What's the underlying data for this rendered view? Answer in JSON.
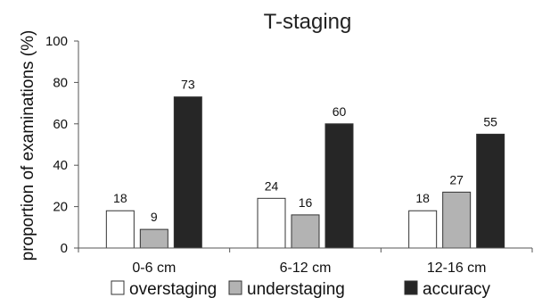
{
  "chart_data": {
    "type": "bar",
    "title": "T-staging",
    "xlabel": "",
    "ylabel": "proportion of examinations (%)",
    "ylim": [
      0,
      100
    ],
    "yticks": [
      0,
      20,
      40,
      60,
      80,
      100
    ],
    "categories": [
      "0-6 cm",
      "6-12 cm",
      "12-16 cm"
    ],
    "series": [
      {
        "name": "overstaging",
        "values": [
          18,
          24,
          18
        ],
        "color": "#ffffff"
      },
      {
        "name": "understaging",
        "values": [
          9,
          16,
          27
        ],
        "color": "#b3b3b3"
      },
      {
        "name": "accuracy",
        "values": [
          73,
          60,
          55
        ],
        "color": "#262626"
      }
    ],
    "data_labels": true,
    "grid": false,
    "legend_position": "bottom"
  }
}
